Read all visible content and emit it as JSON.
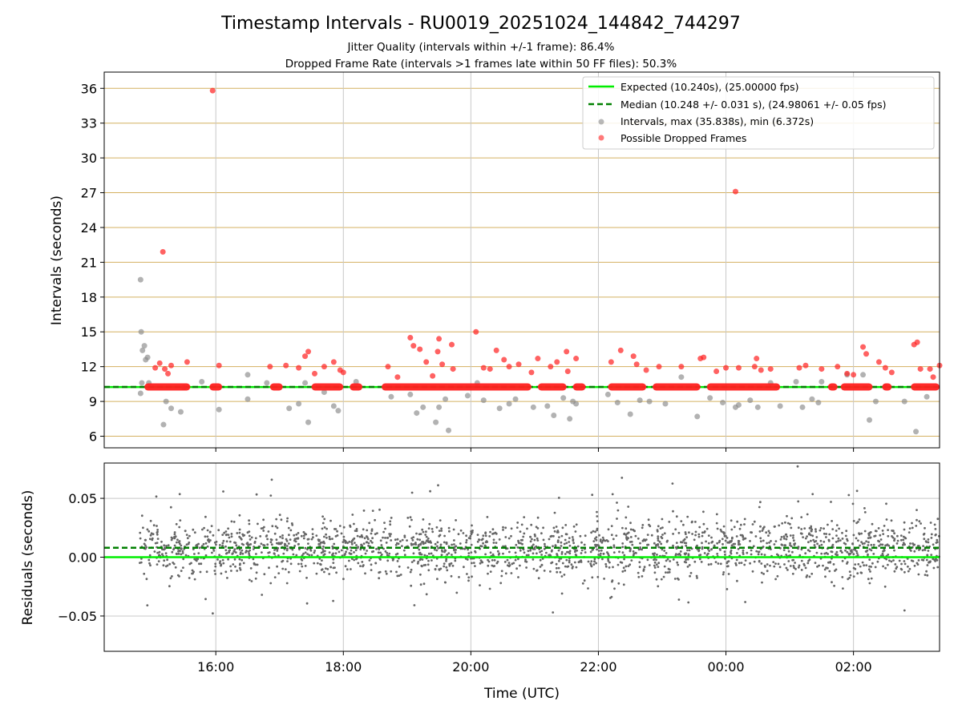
{
  "colors": {
    "expected": "#00ee00",
    "median": "#008000",
    "intervals": "#888888",
    "dropped": "#ff2020",
    "residual": "#666666",
    "hgrid_top": "#d4b060",
    "grid": "#c8c8c8"
  },
  "chart_data": {
    "title": "Timestamp Intervals - RU0019_20251024_144842_744297",
    "subtitle_1": "Jitter Quality (intervals within +/-1 frame): 86.4%",
    "subtitle_2": "Dropped Frame Rate (intervals >1 frames late within 50 FF files): 50.3%",
    "x_label": "Time (UTC)",
    "x_range_hours": [
      14.25,
      27.35
    ],
    "x_ticks": [
      {
        "hour": 16,
        "label": "16:00"
      },
      {
        "hour": 18,
        "label": "18:00"
      },
      {
        "hour": 20,
        "label": "20:00"
      },
      {
        "hour": 22,
        "label": "22:00"
      },
      {
        "hour": 24,
        "label": "00:00"
      },
      {
        "hour": 26,
        "label": "02:00"
      }
    ],
    "top": {
      "type": "scatter",
      "y_label": "Intervals (seconds)",
      "ylim": [
        5,
        37.4
      ],
      "y_ticks": [
        6,
        9,
        12,
        15,
        18,
        21,
        24,
        27,
        30,
        33,
        36
      ],
      "expected": 10.24,
      "median": 10.248,
      "legend": [
        "Expected (10.240s), (25.00000 fps)",
        "Median (10.248 +/- 0.031 s), (24.98061 +/- 0.05 fps)",
        "Intervals, max (35.838s), min (6.372s)",
        "Possible Dropped Frames"
      ],
      "dropped_base_value": 10.25,
      "dropped_base_segments": [
        [
          14.88,
          15.6
        ],
        [
          15.9,
          16.1
        ],
        [
          16.85,
          17.05
        ],
        [
          17.5,
          18.0
        ],
        [
          18.1,
          18.3
        ],
        [
          18.6,
          20.95
        ],
        [
          21.05,
          21.5
        ],
        [
          21.6,
          21.8
        ],
        [
          22.15,
          22.75
        ],
        [
          22.85,
          23.6
        ],
        [
          23.7,
          24.85
        ],
        [
          25.6,
          25.75
        ],
        [
          25.8,
          26.3
        ],
        [
          26.45,
          26.6
        ],
        [
          26.9,
          27.35
        ]
      ],
      "intervals": [
        {
          "x": 14.82,
          "y": 19.5
        },
        {
          "x": 14.83,
          "y": 15.0
        },
        {
          "x": 14.85,
          "y": 13.4
        },
        {
          "x": 14.88,
          "y": 13.8
        },
        {
          "x": 14.9,
          "y": 12.6
        },
        {
          "x": 14.93,
          "y": 12.8
        },
        {
          "x": 14.84,
          "y": 10.6
        },
        {
          "x": 14.82,
          "y": 9.7
        },
        {
          "x": 14.95,
          "y": 10.6
        },
        {
          "x": 15.18,
          "y": 7.0
        },
        {
          "x": 15.22,
          "y": 9.0
        },
        {
          "x": 15.3,
          "y": 8.4
        },
        {
          "x": 15.45,
          "y": 8.1
        },
        {
          "x": 15.5,
          "y": 10.2
        },
        {
          "x": 15.78,
          "y": 10.7
        },
        {
          "x": 16.05,
          "y": 8.3
        },
        {
          "x": 16.5,
          "y": 11.3
        },
        {
          "x": 16.5,
          "y": 9.2
        },
        {
          "x": 16.8,
          "y": 10.6
        },
        {
          "x": 17.15,
          "y": 8.4
        },
        {
          "x": 17.3,
          "y": 8.8
        },
        {
          "x": 17.45,
          "y": 7.2
        },
        {
          "x": 17.4,
          "y": 10.6
        },
        {
          "x": 17.7,
          "y": 9.8
        },
        {
          "x": 17.85,
          "y": 8.6
        },
        {
          "x": 17.92,
          "y": 8.2
        },
        {
          "x": 18.2,
          "y": 10.7
        },
        {
          "x": 18.75,
          "y": 9.4
        },
        {
          "x": 19.05,
          "y": 9.6
        },
        {
          "x": 19.15,
          "y": 8.0
        },
        {
          "x": 19.25,
          "y": 8.5
        },
        {
          "x": 19.45,
          "y": 7.2
        },
        {
          "x": 19.5,
          "y": 8.5
        },
        {
          "x": 19.6,
          "y": 9.2
        },
        {
          "x": 19.65,
          "y": 6.5
        },
        {
          "x": 19.95,
          "y": 9.5
        },
        {
          "x": 20.1,
          "y": 10.6
        },
        {
          "x": 20.2,
          "y": 9.1
        },
        {
          "x": 20.45,
          "y": 8.4
        },
        {
          "x": 20.6,
          "y": 8.8
        },
        {
          "x": 20.7,
          "y": 9.2
        },
        {
          "x": 20.98,
          "y": 8.5
        },
        {
          "x": 21.2,
          "y": 8.6
        },
        {
          "x": 21.3,
          "y": 7.8
        },
        {
          "x": 21.45,
          "y": 9.3
        },
        {
          "x": 21.55,
          "y": 7.5
        },
        {
          "x": 21.6,
          "y": 9.0
        },
        {
          "x": 21.65,
          "y": 8.8
        },
        {
          "x": 22.15,
          "y": 9.6
        },
        {
          "x": 22.3,
          "y": 8.9
        },
        {
          "x": 22.5,
          "y": 7.9
        },
        {
          "x": 22.65,
          "y": 9.1
        },
        {
          "x": 22.8,
          "y": 9.0
        },
        {
          "x": 23.05,
          "y": 8.8
        },
        {
          "x": 23.3,
          "y": 11.1
        },
        {
          "x": 23.55,
          "y": 7.7
        },
        {
          "x": 23.75,
          "y": 9.3
        },
        {
          "x": 23.95,
          "y": 8.9
        },
        {
          "x": 24.15,
          "y": 8.5
        },
        {
          "x": 24.2,
          "y": 8.7
        },
        {
          "x": 24.38,
          "y": 9.1
        },
        {
          "x": 24.5,
          "y": 8.5
        },
        {
          "x": 24.7,
          "y": 10.6
        },
        {
          "x": 24.85,
          "y": 8.6
        },
        {
          "x": 25.1,
          "y": 10.7
        },
        {
          "x": 25.2,
          "y": 8.5
        },
        {
          "x": 25.35,
          "y": 9.2
        },
        {
          "x": 25.45,
          "y": 8.9
        },
        {
          "x": 25.5,
          "y": 10.7
        },
        {
          "x": 25.9,
          "y": 11.3
        },
        {
          "x": 26.15,
          "y": 11.3
        },
        {
          "x": 26.25,
          "y": 7.4
        },
        {
          "x": 26.35,
          "y": 9.0
        },
        {
          "x": 26.5,
          "y": 10.3
        },
        {
          "x": 26.8,
          "y": 9.0
        },
        {
          "x": 26.98,
          "y": 6.4
        },
        {
          "x": 27.15,
          "y": 9.4
        }
      ],
      "dropped": [
        {
          "x": 15.95,
          "y": 35.8
        },
        {
          "x": 24.15,
          "y": 27.1
        },
        {
          "x": 15.17,
          "y": 21.9
        },
        {
          "x": 15.12,
          "y": 12.3
        },
        {
          "x": 15.05,
          "y": 11.9
        },
        {
          "x": 15.2,
          "y": 11.8
        },
        {
          "x": 15.3,
          "y": 12.1
        },
        {
          "x": 15.25,
          "y": 11.4
        },
        {
          "x": 15.55,
          "y": 12.4
        },
        {
          "x": 16.05,
          "y": 12.1
        },
        {
          "x": 16.85,
          "y": 12.0
        },
        {
          "x": 17.1,
          "y": 12.1
        },
        {
          "x": 17.4,
          "y": 12.9
        },
        {
          "x": 17.45,
          "y": 13.3
        },
        {
          "x": 17.3,
          "y": 11.9
        },
        {
          "x": 17.55,
          "y": 11.4
        },
        {
          "x": 17.7,
          "y": 12.0
        },
        {
          "x": 17.85,
          "y": 12.4
        },
        {
          "x": 17.95,
          "y": 11.7
        },
        {
          "x": 18.0,
          "y": 11.5
        },
        {
          "x": 18.7,
          "y": 12.0
        },
        {
          "x": 18.85,
          "y": 11.1
        },
        {
          "x": 19.05,
          "y": 14.5
        },
        {
          "x": 19.1,
          "y": 13.8
        },
        {
          "x": 19.2,
          "y": 13.5
        },
        {
          "x": 19.3,
          "y": 12.4
        },
        {
          "x": 19.4,
          "y": 11.2
        },
        {
          "x": 19.5,
          "y": 14.4
        },
        {
          "x": 19.48,
          "y": 13.3
        },
        {
          "x": 19.55,
          "y": 12.2
        },
        {
          "x": 19.7,
          "y": 13.9
        },
        {
          "x": 19.72,
          "y": 11.8
        },
        {
          "x": 20.08,
          "y": 15.0
        },
        {
          "x": 20.2,
          "y": 11.9
        },
        {
          "x": 20.3,
          "y": 11.8
        },
        {
          "x": 20.4,
          "y": 13.4
        },
        {
          "x": 20.52,
          "y": 12.6
        },
        {
          "x": 20.6,
          "y": 12.0
        },
        {
          "x": 20.75,
          "y": 12.2
        },
        {
          "x": 20.95,
          "y": 11.5
        },
        {
          "x": 21.05,
          "y": 12.7
        },
        {
          "x": 21.25,
          "y": 12.0
        },
        {
          "x": 21.35,
          "y": 12.4
        },
        {
          "x": 21.5,
          "y": 13.3
        },
        {
          "x": 21.52,
          "y": 11.6
        },
        {
          "x": 21.65,
          "y": 12.7
        },
        {
          "x": 22.2,
          "y": 12.4
        },
        {
          "x": 22.35,
          "y": 13.4
        },
        {
          "x": 22.55,
          "y": 12.9
        },
        {
          "x": 22.6,
          "y": 12.2
        },
        {
          "x": 22.75,
          "y": 11.7
        },
        {
          "x": 22.95,
          "y": 12.0
        },
        {
          "x": 23.3,
          "y": 12.0
        },
        {
          "x": 23.6,
          "y": 12.7
        },
        {
          "x": 23.65,
          "y": 12.8
        },
        {
          "x": 23.85,
          "y": 11.6
        },
        {
          "x": 24.0,
          "y": 11.9
        },
        {
          "x": 24.2,
          "y": 11.9
        },
        {
          "x": 24.45,
          "y": 12.0
        },
        {
          "x": 24.48,
          "y": 12.7
        },
        {
          "x": 24.55,
          "y": 11.7
        },
        {
          "x": 24.7,
          "y": 11.8
        },
        {
          "x": 25.15,
          "y": 11.9
        },
        {
          "x": 25.25,
          "y": 12.1
        },
        {
          "x": 25.5,
          "y": 11.8
        },
        {
          "x": 25.75,
          "y": 12.0
        },
        {
          "x": 25.9,
          "y": 11.4
        },
        {
          "x": 26.0,
          "y": 11.3
        },
        {
          "x": 26.15,
          "y": 13.7
        },
        {
          "x": 26.2,
          "y": 13.1
        },
        {
          "x": 26.4,
          "y": 12.4
        },
        {
          "x": 26.5,
          "y": 11.9
        },
        {
          "x": 26.6,
          "y": 11.5
        },
        {
          "x": 26.95,
          "y": 13.9
        },
        {
          "x": 27.0,
          "y": 14.1
        },
        {
          "x": 27.05,
          "y": 11.8
        },
        {
          "x": 27.2,
          "y": 11.8
        },
        {
          "x": 27.25,
          "y": 11.1
        },
        {
          "x": 27.35,
          "y": 12.1
        }
      ]
    },
    "bottom": {
      "type": "scatter",
      "y_label": "Residuals (seconds)",
      "ylim": [
        -0.08,
        0.08
      ],
      "y_ticks": [
        {
          "value": 0.05,
          "label": "0.05"
        },
        {
          "value": 0.0,
          "label": "0.00"
        },
        {
          "value": -0.05,
          "label": "−0.05"
        }
      ],
      "expected": 0.0,
      "median": 0.008,
      "residual_count": 2200,
      "residual_x_range": [
        14.8,
        27.35
      ],
      "residual_center": 0.007,
      "residual_spread": 0.012
    }
  }
}
